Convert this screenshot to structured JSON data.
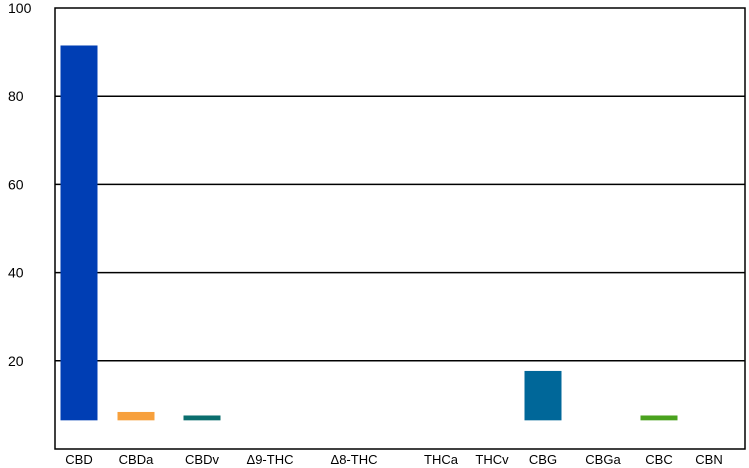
{
  "chart_data": {
    "type": "bar",
    "title": "",
    "xlabel": "",
    "ylabel": "",
    "categories": [
      "CBD",
      "CBDa",
      "CBDv",
      "Δ9-THC",
      "Δ8-THC",
      "THCa",
      "THCv",
      "CBG",
      "CBGa",
      "CBC",
      "CBN"
    ],
    "values": [
      91.5,
      8.4,
      7.6,
      6.5,
      6.5,
      6.5,
      6.5,
      17.7,
      6.5,
      7.6,
      6.5
    ],
    "baseline": 6.5,
    "colors": [
      "#003eb4",
      "#f7a03c",
      "#0b6e6e",
      "#1f77b4",
      "#1f77b4",
      "#1f77b4",
      "#1f77b4",
      "#006799",
      "#1f77b4",
      "#4aa21e",
      "#1f77b4"
    ],
    "yticks": [
      20,
      40,
      60,
      80,
      100
    ],
    "ylim": [
      0,
      100
    ],
    "grid": true,
    "legend": "none"
  }
}
